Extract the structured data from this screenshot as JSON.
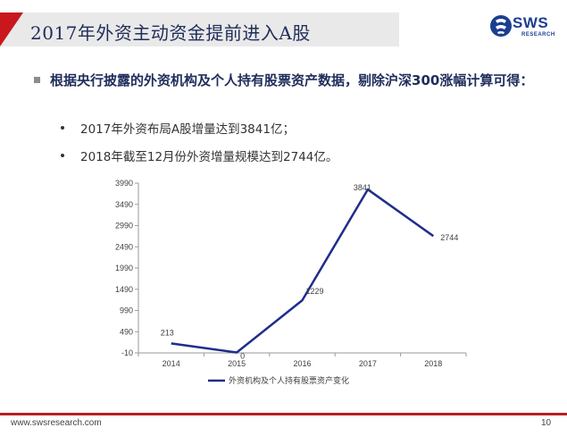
{
  "header": {
    "title": "2017年外资主动资金提前进入A股"
  },
  "logo": {
    "name": "SWS",
    "sub": "RESEARCH"
  },
  "headline": "根据央行披露的外资机构及个人持有股票资产数据，剔除沪深300涨幅计算可得：",
  "bullets": [
    "2017年外资布局A股增量达到3841亿；",
    "2018年截至12月份外资增量规模达到2744亿。"
  ],
  "footer": {
    "url": "www.swsresearch.com",
    "page": "10"
  },
  "colors": {
    "series": "#1f2d8c",
    "accent": "#b81e24",
    "title": "#1f2d5b"
  },
  "chart_data": {
    "type": "line",
    "categories": [
      "2014",
      "2015",
      "2016",
      "2017",
      "2018"
    ],
    "series": [
      {
        "name": "外资机构及个人持有股票资产变化",
        "values": [
          213,
          0,
          1229,
          3841,
          2744
        ]
      }
    ],
    "data_labels": [
      "213",
      "0",
      "1229",
      "3841",
      "2744"
    ],
    "yticks": [
      -10,
      490,
      990,
      1490,
      1990,
      2490,
      2990,
      3490,
      3990
    ],
    "ytick_labels": [
      "-10",
      "490",
      "990",
      "1490",
      "1990",
      "2490",
      "2990",
      "3490",
      "3990"
    ],
    "ylim": [
      -10,
      3990
    ],
    "grid": false,
    "legend": "bottom"
  }
}
